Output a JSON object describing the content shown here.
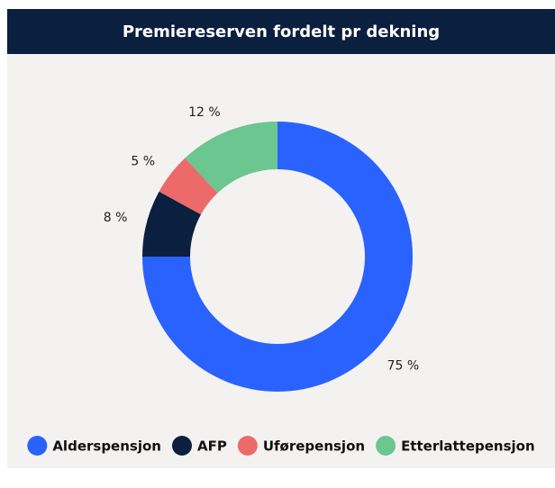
{
  "chart_data": {
    "type": "donut",
    "title": "Premiereserven fordelt pr dekning",
    "categories": [
      "Alderspensjon",
      "AFP",
      "Uførepensjon",
      "Etterlattepensjon"
    ],
    "values": [
      75,
      8,
      5,
      12
    ],
    "value_labels": [
      "75 %",
      "8 %",
      "5 %",
      "12 %"
    ],
    "colors": [
      "#2962ff",
      "#0b1f3f",
      "#ec6a6a",
      "#6cc68f"
    ],
    "legend": "bottom"
  }
}
